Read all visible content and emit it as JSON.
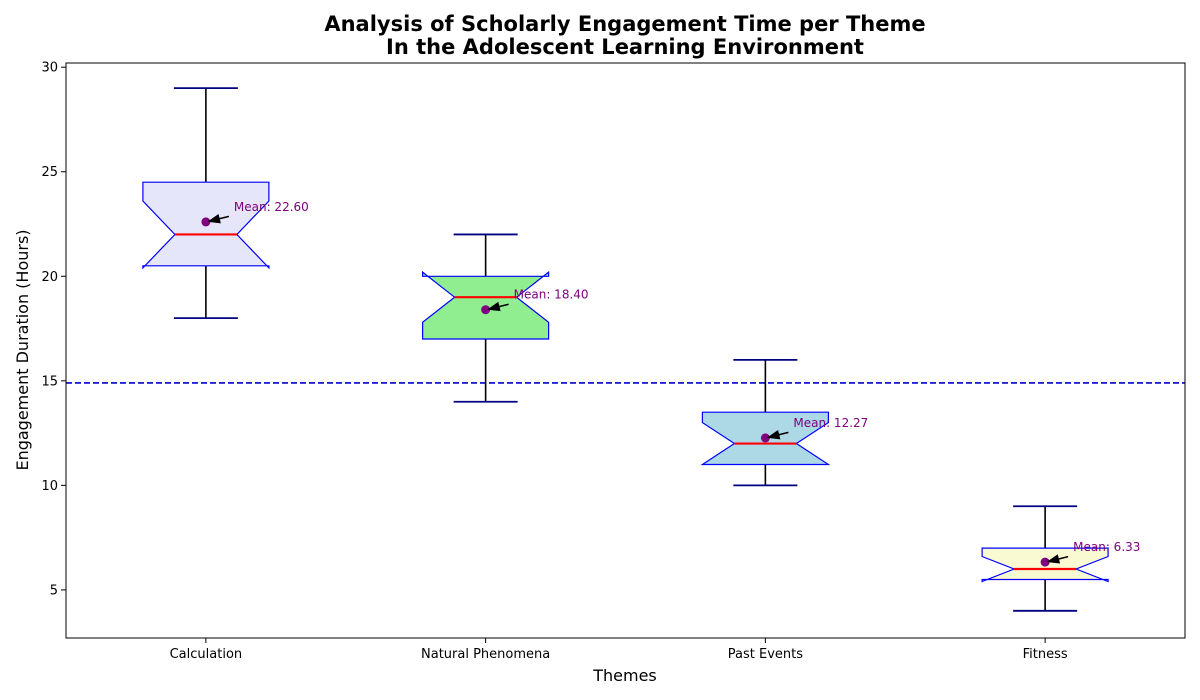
{
  "chart_data": {
    "type": "box",
    "title_lines": [
      "Analysis of Scholarly Engagement Time per Theme",
      "In the Adolescent Learning Environment"
    ],
    "xlabel": "Themes",
    "ylabel": "Engagement Duration (Hours)",
    "ylim": [
      2.7,
      30.2
    ],
    "yticks": [
      5,
      10,
      15,
      20,
      25,
      30
    ],
    "categories": [
      "Calculation",
      "Natural Phenomena",
      "Past Events",
      "Fitness"
    ],
    "boxes": [
      {
        "category": "Calculation",
        "whisker_low": 18,
        "q1": 20.5,
        "median": 22,
        "q3": 24.5,
        "whisker_high": 29,
        "notch_low": 20.4,
        "notch_high": 23.6,
        "mean": 22.6,
        "mean_label": "Mean: 22.60",
        "fill": "#e6e6fa"
      },
      {
        "category": "Natural Phenomena",
        "whisker_low": 14,
        "q1": 17,
        "median": 19,
        "q3": 20,
        "whisker_high": 22,
        "notch_low": 17.8,
        "notch_high": 20.2,
        "mean": 18.4,
        "mean_label": "Mean: 18.40",
        "fill": "#90ee90"
      },
      {
        "category": "Past Events",
        "whisker_low": 10,
        "q1": 11,
        "median": 12,
        "q3": 13.5,
        "whisker_high": 16,
        "notch_low": 11.0,
        "notch_high": 13.0,
        "mean": 12.27,
        "mean_label": "Mean: 12.27",
        "fill": "#add8e6"
      },
      {
        "category": "Fitness",
        "whisker_low": 4,
        "q1": 5.5,
        "median": 6,
        "q3": 7,
        "whisker_high": 9,
        "notch_low": 5.4,
        "notch_high": 6.6,
        "mean": 6.33,
        "mean_label": "Mean: 6.33",
        "fill": "#fafad2"
      }
    ],
    "reference_line": {
      "y": 14.9,
      "color": "#0000cd",
      "style": "dashed"
    },
    "colors": {
      "box_edge": "#0000ff",
      "median": "#ff0000",
      "whisker": "#000000",
      "cap": "#000080",
      "mean_marker": "#800080",
      "mean_text": "#800080",
      "arrow": "#000000"
    },
    "grid": false,
    "legend": "none"
  }
}
